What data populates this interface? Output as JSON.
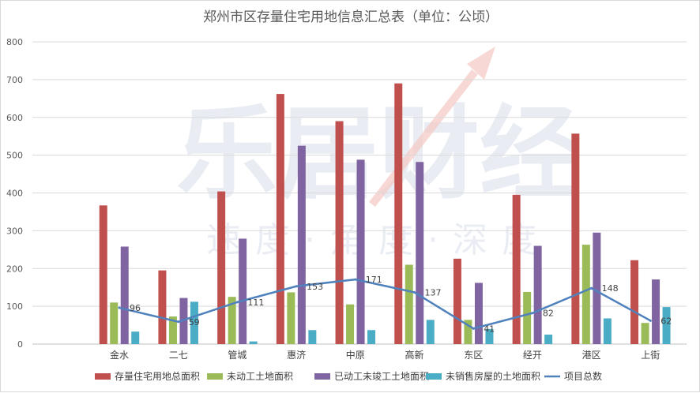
{
  "watermark": {
    "brand": "乐居财经",
    "slogan": "速度·角度·深度",
    "accent_color": "#f4c7c3"
  },
  "chart_data": {
    "type": "bar",
    "title": "郑州市区存量住宅用地信息汇总表（单位：公顷）",
    "categories": [
      "金水",
      "二七",
      "管城",
      "惠济",
      "中原",
      "高新",
      "东区",
      "经开",
      "港区",
      "上街"
    ],
    "ylim": [
      0,
      800
    ],
    "yticks": [
      0,
      100,
      200,
      300,
      400,
      500,
      600,
      700,
      800
    ],
    "grid": true,
    "legend_position": "bottom",
    "series": [
      {
        "name": "存量住宅用地总面积",
        "type": "bar",
        "color": "#c0504d",
        "values": [
          367,
          195,
          404,
          662,
          590,
          690,
          226,
          395,
          557,
          222
        ]
      },
      {
        "name": "未动工土地面积",
        "type": "bar",
        "color": "#9bbb59",
        "values": [
          110,
          73,
          125,
          137,
          105,
          210,
          64,
          138,
          263,
          56
        ]
      },
      {
        "name": "已动工未竣工土地面积",
        "type": "bar",
        "color": "#8064a2",
        "values": [
          258,
          122,
          279,
          525,
          488,
          482,
          162,
          260,
          295,
          171
        ]
      },
      {
        "name": "未销售房屋的土地面积",
        "type": "bar",
        "color": "#4bacc6",
        "values": [
          33,
          112,
          7,
          37,
          37,
          64,
          40,
          25,
          68,
          98
        ]
      },
      {
        "name": "项目总数",
        "type": "line",
        "color": "#4f81bd",
        "values": [
          96,
          59,
          111,
          153,
          171,
          137,
          41,
          82,
          148,
          62
        ]
      }
    ]
  }
}
